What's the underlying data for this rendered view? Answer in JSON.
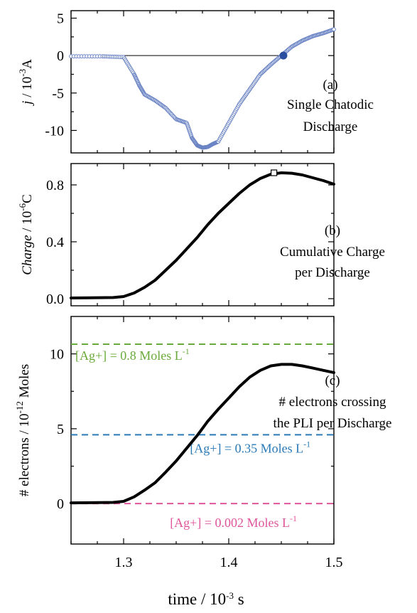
{
  "chart_data": [
    {
      "panel": "a",
      "type": "scatter",
      "ylabel": {
        "italic": "j",
        "rest": " / 10",
        "sup": "-3",
        "tail": "A"
      },
      "xlim": [
        1.25,
        1.5
      ],
      "ylim": [
        -13,
        6
      ],
      "yticks": [
        5,
        0,
        -5,
        -10
      ],
      "annotation_lines": [
        "(a)",
        "Single Chatodic",
        "Discharge"
      ],
      "marker_color": "#6b84c4",
      "highlight_color": "#2a4ea0",
      "reference_line": {
        "y": 0,
        "x_from": 1.25,
        "x_to": 1.45
      },
      "highlight_point": {
        "x": 1.452,
        "y": 0
      },
      "series": [
        {
          "x": [
            1.25,
            1.28,
            1.3,
            1.31,
            1.315,
            1.32,
            1.33,
            1.34,
            1.35,
            1.36,
            1.365,
            1.37,
            1.375,
            1.38,
            1.385,
            1.39,
            1.4,
            1.41,
            1.42,
            1.43,
            1.44,
            1.45,
            1.46,
            1.47,
            1.48,
            1.49,
            1.5
          ],
          "y": [
            -0.1,
            -0.1,
            -0.2,
            -2.5,
            -4.0,
            -5.2,
            -6.0,
            -7.0,
            -8.5,
            -9.0,
            -11.0,
            -12.0,
            -12.3,
            -12.2,
            -11.8,
            -11.5,
            -9.0,
            -6.5,
            -4.5,
            -2.5,
            -1.2,
            0.0,
            1.2,
            2.0,
            2.6,
            3.0,
            3.5
          ]
        }
      ]
    },
    {
      "panel": "b",
      "type": "line",
      "ylabel": {
        "italic": "Charge",
        "rest": " / 10",
        "sup": "-6",
        "tail": "C"
      },
      "xlim": [
        1.25,
        1.5
      ],
      "ylim": [
        -0.05,
        0.95
      ],
      "yticks": [
        0.8,
        0.4,
        0.0
      ],
      "ytick_labels": [
        "0.8",
        "0.4",
        "0.0"
      ],
      "annotation_lines": [
        "(b)",
        "Cumulative Charge",
        " per Discharge"
      ],
      "marker_point": {
        "x": 1.443,
        "y": 0.885
      },
      "series": [
        {
          "x": [
            1.25,
            1.29,
            1.3,
            1.31,
            1.32,
            1.33,
            1.34,
            1.35,
            1.36,
            1.37,
            1.38,
            1.39,
            1.4,
            1.41,
            1.42,
            1.43,
            1.44,
            1.45,
            1.46,
            1.47,
            1.48,
            1.49,
            1.5
          ],
          "y": [
            0.005,
            0.008,
            0.015,
            0.04,
            0.08,
            0.13,
            0.2,
            0.27,
            0.35,
            0.43,
            0.52,
            0.6,
            0.67,
            0.74,
            0.8,
            0.845,
            0.875,
            0.885,
            0.882,
            0.87,
            0.85,
            0.83,
            0.805
          ]
        }
      ]
    },
    {
      "panel": "c",
      "type": "line",
      "ylabel": {
        "italic": "",
        "rest": "# electrons / 10",
        "sup": "-12",
        "tail": " Moles"
      },
      "xlabel": {
        "rest": "time / 10",
        "sup": "-3",
        "tail": " s"
      },
      "xlim": [
        1.25,
        1.5
      ],
      "ylim": [
        -2.7,
        12.5
      ],
      "yticks": [
        10,
        5,
        0
      ],
      "xticks": [
        1.3,
        1.4,
        1.5
      ],
      "xtick_labels": [
        "1.3",
        "1.4",
        "1.5"
      ],
      "annotation_lines": [
        "(c)",
        "# electrons crossing",
        "the PLI per Discharge"
      ],
      "reference_lines": [
        {
          "y": 10.65,
          "color": "#6aaa3a",
          "label": "[Ag+] = 0.8 Moles L",
          "label_sup": "-1",
          "label_x": 1.25,
          "label_y": 9.6
        },
        {
          "y": 4.6,
          "color": "#2a7ab8",
          "label": "[Ag+] = 0.35 Moles L",
          "label_sup": "-1",
          "label_x": 1.359,
          "label_y": 3.4
        },
        {
          "y": 0.0,
          "color": "#e0559a",
          "label": "[Ag+] = 0.002 Moles L",
          "label_sup": "-1",
          "label_x": 1.34,
          "label_y": -1.55
        }
      ],
      "series": [
        {
          "x": [
            1.25,
            1.29,
            1.3,
            1.31,
            1.32,
            1.33,
            1.34,
            1.35,
            1.36,
            1.37,
            1.38,
            1.39,
            1.4,
            1.41,
            1.42,
            1.43,
            1.44,
            1.45,
            1.46,
            1.47,
            1.48,
            1.49,
            1.5
          ],
          "y": [
            0.05,
            0.08,
            0.15,
            0.45,
            0.9,
            1.4,
            2.1,
            2.85,
            3.7,
            4.55,
            5.5,
            6.3,
            7.05,
            7.8,
            8.45,
            8.9,
            9.2,
            9.3,
            9.3,
            9.2,
            9.05,
            8.9,
            8.75
          ]
        }
      ]
    }
  ]
}
